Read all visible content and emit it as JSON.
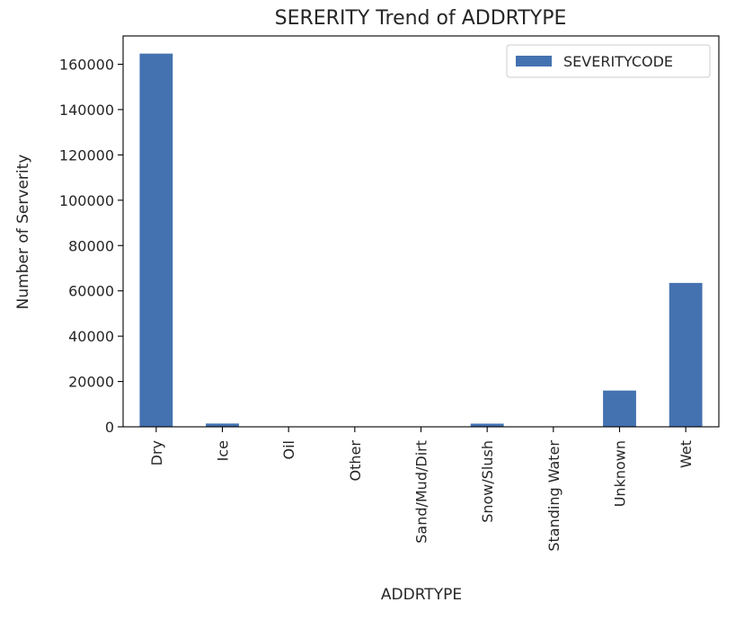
{
  "chart_data": {
    "type": "bar",
    "title": "SERERITY Trend of ADDRTYPE",
    "xlabel": "ADDRTYPE",
    "ylabel": "Number of Serverity",
    "categories": [
      "Dry",
      "Ice",
      "Oil",
      "Other",
      "Sand/Mud/Dirt",
      "Snow/Slush",
      "Standing Water",
      "Unknown",
      "Wet"
    ],
    "series": [
      {
        "name": "SEVERITYCODE",
        "values": [
          164700,
          1450,
          0,
          0,
          0,
          1400,
          0,
          16000,
          63500
        ],
        "color": "#4472b0"
      }
    ],
    "ylim": [
      0,
      172500
    ],
    "yticks": [
      0,
      20000,
      40000,
      60000,
      80000,
      100000,
      120000,
      140000,
      160000
    ],
    "ytick_labels": [
      "0",
      "20000",
      "40000",
      "60000",
      "80000",
      "100000",
      "120000",
      "140000",
      "160000"
    ],
    "grid": false,
    "legend_position": "top-right"
  }
}
